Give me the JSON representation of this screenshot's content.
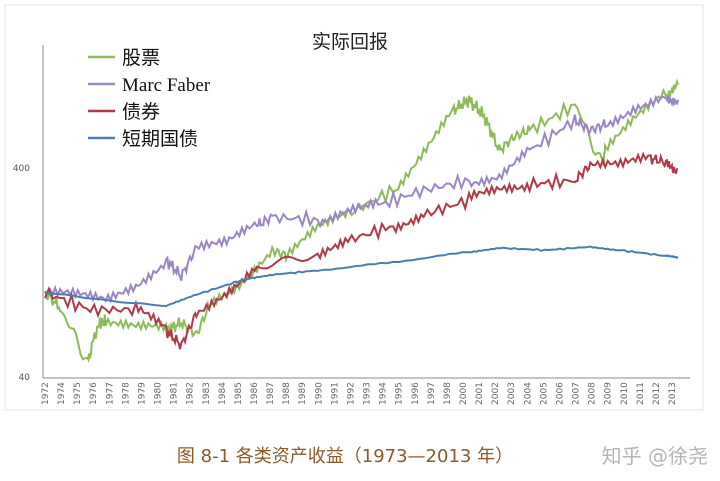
{
  "chart_data": {
    "type": "line",
    "title": "实际回报",
    "y_scale": "log",
    "ylim": [
      40,
      1500
    ],
    "y_ticks": [
      "40",
      "400"
    ],
    "x_tick_labels": [
      "1972",
      "1974",
      "1975",
      "1976",
      "1977",
      "1978",
      "1979",
      "1980",
      "1981",
      "1982",
      "1983",
      "1984",
      "1985",
      "1986",
      "1987",
      "1988",
      "1989",
      "1990",
      "1991",
      "1992",
      "1993",
      "1994",
      "1995",
      "1996",
      "1997",
      "1998",
      "2000",
      "2001",
      "2002",
      "2003",
      "2004",
      "2005",
      "2006",
      "2007",
      "2008",
      "2009",
      "2010",
      "2011",
      "2012",
      "2013"
    ],
    "legend_position": "top-left",
    "grid": false,
    "series": [
      {
        "name": "股票",
        "color": "#8dbb5a",
        "x": [
          1972,
          1973,
          1974.8,
          1975.5,
          1976,
          1978,
          1980,
          1981,
          1982,
          1983,
          1985,
          1987,
          1988,
          1990,
          1992,
          1995,
          1997,
          1999,
          2000,
          2001,
          2002,
          2003,
          2004,
          2007,
          2008.8,
          2009,
          2011,
          2013,
          2013.8
        ],
        "y": [
          100,
          85,
          47,
          70,
          74,
          68,
          66,
          72,
          63,
          92,
          115,
          160,
          150,
          200,
          238,
          310,
          480,
          750,
          840,
          700,
          480,
          560,
          600,
          790,
          410,
          480,
          670,
          900,
          990
        ]
      },
      {
        "name": "Marc Faber",
        "color": "#9b86c4",
        "x": [
          1972,
          1974,
          1976,
          1978,
          1980,
          1981,
          1982,
          1984,
          1986,
          1987,
          1990,
          1992,
          1994,
          1997,
          2000,
          2002,
          2004,
          2007,
          2008,
          2009,
          2011,
          2013,
          2013.8
        ],
        "y": [
          100,
          96,
          92,
          110,
          144,
          120,
          165,
          170,
          210,
          230,
          223,
          250,
          262,
          310,
          345,
          365,
          480,
          670,
          600,
          640,
          790,
          880,
          840
        ]
      },
      {
        "name": "债券",
        "color": "#b03a48",
        "x": [
          1972,
          1975,
          1978,
          1980,
          1981,
          1982,
          1984,
          1986,
          1990,
          1992,
          1995,
          1997,
          2000,
          2002,
          2004,
          2007,
          2008,
          2010,
          2012,
          2013,
          2013.8
        ],
        "y": [
          100,
          83,
          83,
          66,
          56,
          80,
          103,
          136,
          144,
          178,
          210,
          236,
          278,
          310,
          330,
          345,
          410,
          400,
          440,
          420,
          390
        ]
      },
      {
        "name": "短期国债",
        "color": "#4a7eb3",
        "x": [
          1972,
          1976,
          1980,
          1982,
          1985,
          1987,
          1990,
          1995,
          2000,
          2002,
          2005,
          2008,
          2010,
          2013,
          2013.8
        ],
        "y": [
          100,
          92,
          87,
          98,
          115,
          122,
          128,
          140,
          157,
          164,
          160,
          166,
          160,
          150,
          148
        ]
      }
    ]
  },
  "caption": "图 8-1 各类资产收益（1973—2013 年）",
  "watermark": "知乎 @徐尧"
}
